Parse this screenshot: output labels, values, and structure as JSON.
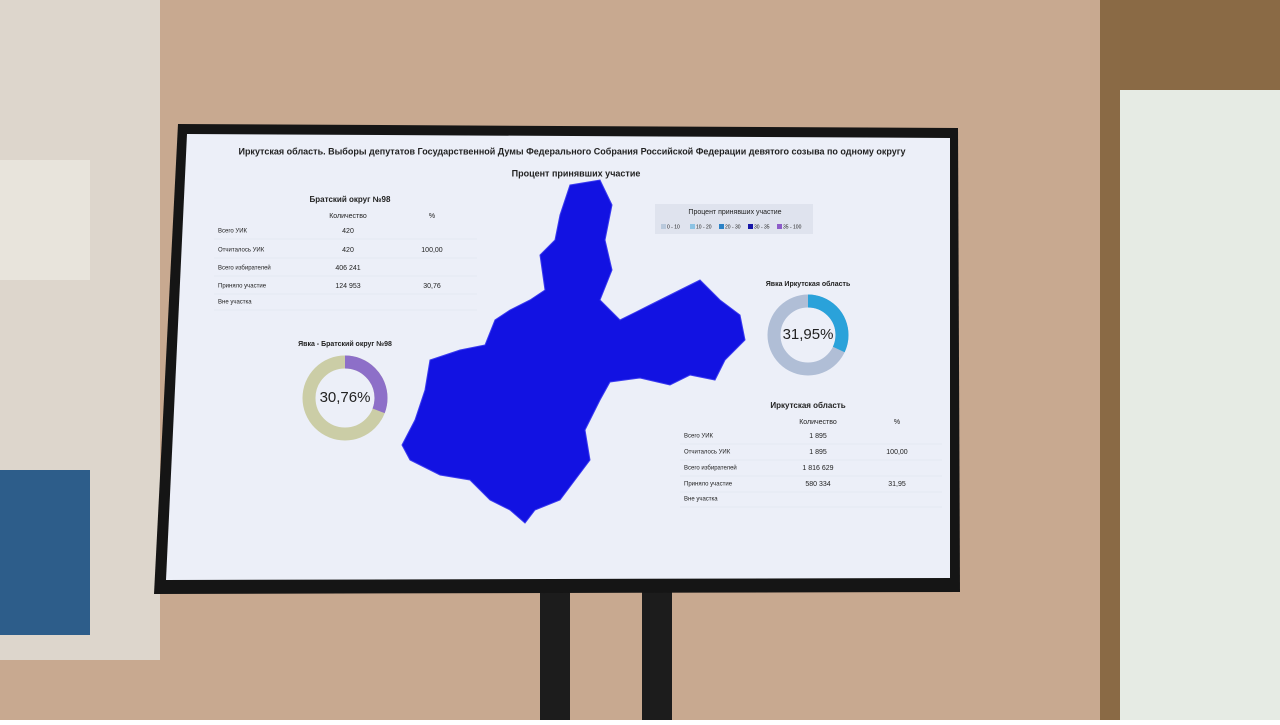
{
  "header": {
    "title": "Иркутская область. Выборы депутатов Государственной Думы Федерального Собрания Российской Федерации девятого созыва по одному округу",
    "subtitle": "Процент принявших участие"
  },
  "legend": {
    "title": "Процент принявших участие",
    "items": [
      "0 - 10",
      "10 - 20",
      "20 - 30",
      "30 - 35",
      "35 - 100"
    ],
    "colors": [
      "#b9c9dc",
      "#8cc3e4",
      "#2b82c6",
      "#1616a8",
      "#8d5cc9"
    ]
  },
  "district_table": {
    "title": "Братский округ №98",
    "headers": [
      "Количество",
      "%"
    ],
    "rows": [
      {
        "label": "Всего УИК",
        "count": "420"
      },
      {
        "label": "Отчиталось УИК",
        "count": "420",
        "pct": "100,00"
      },
      {
        "label": "Всего избирателей",
        "count": "406 241"
      },
      {
        "label": "Приняло участие",
        "count": "124 953",
        "pct": "30,76"
      },
      {
        "label": "Вне участка"
      }
    ]
  },
  "region_table": {
    "title": "Иркутская область",
    "headers": [
      "Количество",
      "%"
    ],
    "rows": [
      {
        "label": "Всего УИК",
        "count": "1 895"
      },
      {
        "label": "Отчиталось УИК",
        "count": "1 895",
        "pct": "100,00"
      },
      {
        "label": "Всего избирателей",
        "count": "1 816 629"
      },
      {
        "label": "Приняло участие",
        "count": "580 334",
        "pct": "31,95"
      },
      {
        "label": "Вне участка"
      }
    ]
  },
  "donuts": [
    {
      "title": "Явка - Братский округ №98",
      "value": 30.76,
      "value_label": "30,76%",
      "color": "#8d6fc8",
      "rest_color": "#cbcda6"
    },
    {
      "title": "Явка Иркутская область",
      "value": 31.95,
      "value_label": "31,95%",
      "color": "#2aa2da",
      "rest_color": "#b0bed6"
    }
  ]
}
